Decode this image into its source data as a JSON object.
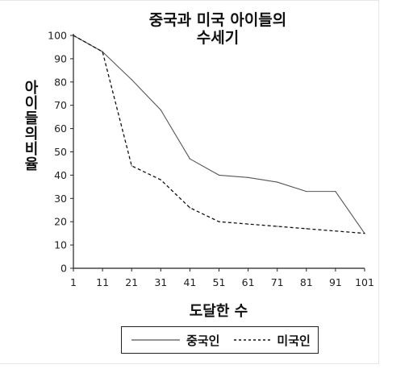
{
  "chart_data": {
    "type": "line",
    "title": "중국과 미국 아이들의\n수세기",
    "xlabel": "도달한 수",
    "ylabel": "아이들의 비율",
    "x": [
      1,
      11,
      21,
      31,
      41,
      51,
      61,
      71,
      81,
      91,
      101
    ],
    "xticks": [
      "1",
      "11",
      "21",
      "31",
      "41",
      "51",
      "61",
      "71",
      "81",
      "91",
      "101"
    ],
    "yticks": [
      "0",
      "10",
      "20",
      "30",
      "40",
      "50",
      "60",
      "70",
      "80",
      "90",
      "100"
    ],
    "xlim": [
      1,
      101
    ],
    "ylim": [
      0,
      100
    ],
    "grid": false,
    "legend_position": "bottom",
    "series": [
      {
        "name": "중국인",
        "style": "solid",
        "color": "#555555",
        "values": [
          100,
          93,
          81,
          68,
          47,
          40,
          39,
          37,
          33,
          33,
          15
        ]
      },
      {
        "name": "미국인",
        "style": "dashed",
        "color": "#111111",
        "values": [
          100,
          93,
          44,
          38,
          26,
          20,
          19,
          18,
          17,
          16,
          15
        ]
      }
    ]
  }
}
